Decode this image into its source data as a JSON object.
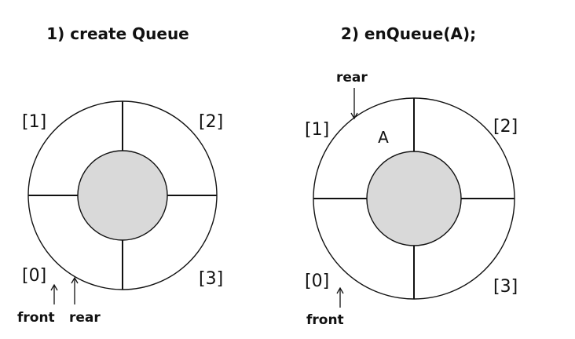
{
  "panel_left": {
    "title": "1) create Queue",
    "labels": {
      "slot_0": "[0]",
      "slot_1": "[1]",
      "slot_2": "[2]",
      "slot_3": "[3]"
    },
    "pointers": {
      "front": "front",
      "rear": "rear"
    }
  },
  "panel_right": {
    "title": "2) enQueue(A);",
    "labels": {
      "slot_0": "[0]",
      "slot_1": "[1]",
      "slot_2": "[2]",
      "slot_3": "[3]"
    },
    "pointers": {
      "front": "front",
      "rear": "rear"
    },
    "element": "A"
  },
  "colors": {
    "hub_fill": "#d9d9d9",
    "stroke": "#111111"
  }
}
